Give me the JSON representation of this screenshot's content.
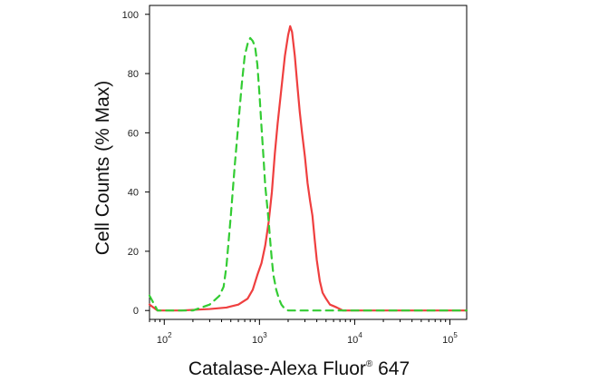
{
  "chart_data": {
    "type": "line",
    "title": "",
    "xlabel": "Catalase-Alexa Fluor",
    "xlabel_sup": "®",
    "xlabel_suffix": " 647",
    "ylabel": "Cell Counts (% Max)",
    "xscale": "log",
    "xlim": [
      70,
      150000
    ],
    "ylim": [
      -3,
      103
    ],
    "grid": false,
    "legend": "none",
    "yticks": [
      0,
      20,
      40,
      60,
      80,
      100
    ],
    "ytick_labels": [
      "0",
      "20",
      "40",
      "60",
      "80",
      "100"
    ],
    "xticks_major": [
      100,
      1000,
      10000,
      100000
    ],
    "xtick_labels": [
      {
        "base": "10",
        "exp": "2"
      },
      {
        "base": "10",
        "exp": "3"
      },
      {
        "base": "10",
        "exp": "4"
      },
      {
        "base": "10",
        "exp": "5"
      }
    ],
    "series": [
      {
        "color": "#ef3f3f",
        "style": "solid",
        "x": [
          70,
          85,
          100,
          150,
          300,
          450,
          600,
          750,
          850,
          950,
          1050,
          1150,
          1250,
          1350,
          1450,
          1550,
          1700,
          1850,
          2000,
          2100,
          2200,
          2350,
          2500,
          2650,
          2800,
          3000,
          3200,
          3400,
          3600,
          3800,
          4000,
          4300,
          4600,
          5000,
          5500,
          6000,
          6500,
          7000,
          7500,
          8000,
          9000,
          10000,
          20000,
          50000,
          100000,
          150000
        ],
        "y": [
          2,
          0,
          0,
          0,
          0.5,
          1,
          2,
          4,
          7,
          12,
          16,
          22,
          30,
          40,
          53,
          63,
          75,
          86,
          93,
          96,
          94,
          86,
          76,
          67,
          60,
          52,
          43,
          37,
          32,
          24,
          17,
          10,
          6,
          4,
          2,
          1.5,
          1,
          0.5,
          0,
          0,
          0,
          0,
          0,
          0,
          0,
          0
        ]
      },
      {
        "color": "#33cc33",
        "style": "dashed",
        "x": [
          70,
          85,
          100,
          150,
          200,
          300,
          380,
          420,
          450,
          500,
          550,
          600,
          650,
          700,
          750,
          800,
          850,
          900,
          950,
          1000,
          1050,
          1100,
          1150,
          1200,
          1250,
          1300,
          1350,
          1400,
          1500,
          1600,
          1700,
          1800,
          1900,
          2000,
          2300,
          2600,
          3000,
          150000
        ],
        "y": [
          5,
          0,
          0,
          0,
          0,
          2,
          5,
          8,
          15,
          32,
          49,
          63,
          76,
          86,
          90,
          92,
          91,
          89,
          83,
          73,
          62,
          52,
          42,
          36,
          30,
          23,
          17,
          12,
          7,
          4,
          2,
          1,
          0.5,
          0,
          0,
          0,
          0,
          0
        ]
      }
    ]
  }
}
